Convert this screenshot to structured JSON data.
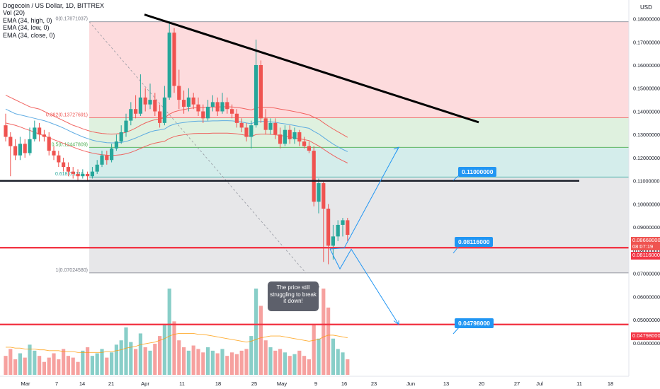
{
  "header": {
    "symbol_title": "Dogecoin / US Dollar, 1D, BITTREX",
    "indicators": [
      "Vol (20)",
      "EMA (34, high, 0)",
      "EMA (34, low, 0)",
      "EMA (34, close, 0)"
    ]
  },
  "currency_label": "USD",
  "callout_text": "The price still struggling to break it down!",
  "badges": [
    {
      "text": "0.11000000",
      "price": 0.11
    },
    {
      "text": "0.08116000",
      "price": 0.08116
    },
    {
      "text": "0.04798000",
      "price": 0.04798
    }
  ],
  "price_tags": {
    "current": {
      "price_text": "0.08668000",
      "timer_text": "08:07:19",
      "color": "#ef5350"
    },
    "support": {
      "text": "0.08116000",
      "color": "#f23645"
    },
    "target": {
      "text": "0.04798000",
      "color": "#f23645"
    }
  },
  "colors": {
    "bull": "#26a69a",
    "bear": "#ef5350",
    "red_line": "#f23645",
    "blue": "#2196f3",
    "ema": "#ef5350",
    "ema_close": "#4fa3e0",
    "fib_red": "rgba(242,54,69,0.18)",
    "fib_green": "rgba(76,175,80,0.18)",
    "fib_teal": "rgba(38,166,154,0.20)",
    "fib_gray": "rgba(120,123,134,0.18)"
  },
  "chart_data": {
    "type": "candlestick",
    "y_axis_ticks": [
      "0.18000000",
      "0.17000000",
      "0.16000000",
      "0.15000000",
      "0.14000000",
      "0.13000000",
      "0.12000000",
      "0.11000000",
      "0.10000000",
      "0.09000000",
      "0.08000000",
      "0.07000000",
      "0.06000000",
      "0.05000000",
      "0.04000000"
    ],
    "y_axis_range": [
      0.0354,
      0.1826
    ],
    "x_axis_ticks": [
      "Mar",
      "7",
      "14",
      "21",
      "Apr",
      "11",
      "18",
      "25",
      "May",
      "9",
      "16",
      "23",
      "Jun",
      "13",
      "20",
      "27",
      "Jul",
      "11",
      "18"
    ],
    "fib_levels": [
      {
        "ratio": "0",
        "price": 0.17871037,
        "label": "0(0.17871037)"
      },
      {
        "ratio": "0.382",
        "price": 0.13727691,
        "label": "0.382(0.13727691)"
      },
      {
        "ratio": "0.5",
        "price": 0.12447809,
        "label": "0.5(0.12447809)"
      },
      {
        "ratio": "0.618",
        "price": 0.11167927,
        "label": "0.618(0.1116..."
      },
      {
        "ratio": "1",
        "price": 0.0702458,
        "label": "1(0.07024580)"
      }
    ],
    "horizontal_levels": [
      0.11,
      0.08116,
      0.04798
    ],
    "candles": [
      [
        0.134,
        0.129,
        0.139,
        0.127
      ],
      [
        0.129,
        0.125,
        0.131,
        0.112
      ],
      [
        0.125,
        0.121,
        0.128,
        0.119
      ],
      [
        0.121,
        0.126,
        0.129,
        0.119
      ],
      [
        0.126,
        0.122,
        0.128,
        0.12
      ],
      [
        0.122,
        0.128,
        0.133,
        0.121
      ],
      [
        0.128,
        0.133,
        0.136,
        0.127
      ],
      [
        0.133,
        0.13,
        0.135,
        0.127
      ],
      [
        0.13,
        0.129,
        0.132,
        0.127
      ],
      [
        0.129,
        0.123,
        0.131,
        0.121
      ],
      [
        0.123,
        0.121,
        0.125,
        0.119
      ],
      [
        0.121,
        0.118,
        0.123,
        0.116
      ],
      [
        0.118,
        0.116,
        0.12,
        0.114
      ],
      [
        0.116,
        0.114,
        0.118,
        0.112
      ],
      [
        0.114,
        0.113,
        0.116,
        0.111
      ],
      [
        0.113,
        0.112,
        0.115,
        0.11
      ],
      [
        0.112,
        0.113,
        0.115,
        0.111
      ],
      [
        0.113,
        0.112,
        0.114,
        0.11
      ],
      [
        0.112,
        0.114,
        0.116,
        0.111
      ],
      [
        0.114,
        0.117,
        0.119,
        0.113
      ],
      [
        0.117,
        0.121,
        0.123,
        0.116
      ],
      [
        0.121,
        0.119,
        0.123,
        0.117
      ],
      [
        0.119,
        0.124,
        0.126,
        0.118
      ],
      [
        0.124,
        0.127,
        0.13,
        0.123
      ],
      [
        0.127,
        0.131,
        0.134,
        0.126
      ],
      [
        0.131,
        0.136,
        0.139,
        0.129
      ],
      [
        0.136,
        0.141,
        0.144,
        0.134
      ],
      [
        0.141,
        0.139,
        0.147,
        0.137
      ],
      [
        0.139,
        0.146,
        0.156,
        0.138
      ],
      [
        0.146,
        0.143,
        0.15,
        0.14
      ],
      [
        0.143,
        0.145,
        0.152,
        0.141
      ],
      [
        0.145,
        0.14,
        0.148,
        0.138
      ],
      [
        0.14,
        0.135,
        0.143,
        0.133
      ],
      [
        0.135,
        0.146,
        0.151,
        0.134
      ],
      [
        0.146,
        0.174,
        0.179,
        0.145
      ],
      [
        0.174,
        0.151,
        0.176,
        0.148
      ],
      [
        0.151,
        0.145,
        0.158,
        0.141
      ],
      [
        0.145,
        0.142,
        0.149,
        0.139
      ],
      [
        0.142,
        0.146,
        0.15,
        0.14
      ],
      [
        0.146,
        0.143,
        0.148,
        0.141
      ],
      [
        0.143,
        0.14,
        0.146,
        0.138
      ],
      [
        0.14,
        0.137,
        0.143,
        0.135
      ],
      [
        0.137,
        0.142,
        0.145,
        0.136
      ],
      [
        0.142,
        0.144,
        0.147,
        0.14
      ],
      [
        0.144,
        0.14,
        0.146,
        0.138
      ],
      [
        0.14,
        0.144,
        0.148,
        0.139
      ],
      [
        0.144,
        0.141,
        0.146,
        0.139
      ],
      [
        0.141,
        0.139,
        0.143,
        0.137
      ],
      [
        0.139,
        0.135,
        0.141,
        0.133
      ],
      [
        0.135,
        0.133,
        0.137,
        0.131
      ],
      [
        0.133,
        0.129,
        0.135,
        0.127
      ],
      [
        0.129,
        0.134,
        0.136,
        0.124
      ],
      [
        0.134,
        0.16,
        0.171,
        0.133
      ],
      [
        0.16,
        0.137,
        0.162,
        0.135
      ],
      [
        0.137,
        0.132,
        0.141,
        0.13
      ],
      [
        0.132,
        0.135,
        0.137,
        0.13
      ],
      [
        0.135,
        0.13,
        0.137,
        0.128
      ],
      [
        0.13,
        0.126,
        0.133,
        0.124
      ],
      [
        0.126,
        0.132,
        0.134,
        0.125
      ],
      [
        0.132,
        0.128,
        0.134,
        0.126
      ],
      [
        0.128,
        0.131,
        0.133,
        0.126
      ],
      [
        0.131,
        0.127,
        0.132,
        0.125
      ],
      [
        0.127,
        0.125,
        0.129,
        0.124
      ],
      [
        0.125,
        0.123,
        0.127,
        0.122
      ],
      [
        0.123,
        0.101,
        0.125,
        0.099
      ],
      [
        0.101,
        0.109,
        0.111,
        0.096
      ],
      [
        0.109,
        0.098,
        0.11,
        0.075
      ],
      [
        0.098,
        0.082,
        0.1,
        0.074
      ],
      [
        0.082,
        0.086,
        0.091,
        0.076
      ],
      [
        0.086,
        0.091,
        0.093,
        0.084
      ],
      [
        0.091,
        0.093,
        0.094,
        0.086
      ],
      [
        0.093,
        0.0867,
        0.094,
        0.084
      ]
    ],
    "ema_high": [
      0.147,
      0.146,
      0.145,
      0.144,
      0.143,
      0.142,
      0.1415,
      0.141,
      0.14,
      0.139,
      0.138,
      0.137,
      0.136,
      0.135,
      0.134,
      0.1333,
      0.1325,
      0.1318,
      0.1312,
      0.1308,
      0.1305,
      0.1303,
      0.1302,
      0.1303,
      0.1305,
      0.131,
      0.1318,
      0.1328,
      0.134,
      0.135,
      0.1358,
      0.1364,
      0.1368,
      0.1372,
      0.1388,
      0.1398,
      0.1404,
      0.1408,
      0.1412,
      0.1415,
      0.1416,
      0.1417,
      0.1418,
      0.1419,
      0.1419,
      0.142,
      0.142,
      0.1419,
      0.1417,
      0.1414,
      0.141,
      0.1406,
      0.1414,
      0.1418,
      0.1418,
      0.1417,
      0.1414,
      0.141,
      0.1407,
      0.1403,
      0.1399,
      0.1395,
      0.139,
      0.1385,
      0.1375,
      0.1366,
      0.1351,
      0.1337,
      0.1324,
      0.1312,
      0.13,
      0.1288
    ],
    "ema_close": [
      0.141,
      0.14,
      0.139,
      0.1385,
      0.138,
      0.1375,
      0.137,
      0.1365,
      0.136,
      0.1353,
      0.1345,
      0.1337,
      0.1328,
      0.1318,
      0.1308,
      0.1299,
      0.129,
      0.1283,
      0.1276,
      0.1271,
      0.1268,
      0.1265,
      0.1264,
      0.1264,
      0.1266,
      0.127,
      0.1277,
      0.1285,
      0.1294,
      0.1303,
      0.1311,
      0.1317,
      0.132,
      0.1324,
      0.1337,
      0.1345,
      0.1349,
      0.1352,
      0.1355,
      0.1357,
      0.1358,
      0.1358,
      0.1358,
      0.1359,
      0.1359,
      0.136,
      0.136,
      0.1359,
      0.1357,
      0.1354,
      0.135,
      0.1347,
      0.1355,
      0.1357,
      0.1357,
      0.1355,
      0.1353,
      0.1349,
      0.1346,
      0.1343,
      0.1339,
      0.1335,
      0.1331,
      0.1327,
      0.1314,
      0.1303,
      0.1288,
      0.1273,
      0.1259,
      0.1247,
      0.1236,
      0.1226
    ],
    "ema_low": [
      0.135,
      0.1345,
      0.134,
      0.1333,
      0.1325,
      0.1318,
      0.131,
      0.1302,
      0.1294,
      0.1286,
      0.1278,
      0.127,
      0.1262,
      0.1254,
      0.1246,
      0.1238,
      0.1231,
      0.1225,
      0.122,
      0.1216,
      0.1213,
      0.1211,
      0.121,
      0.1211,
      0.1213,
      0.1217,
      0.1223,
      0.1231,
      0.124,
      0.1249,
      0.1257,
      0.1263,
      0.1267,
      0.1271,
      0.1283,
      0.1291,
      0.1296,
      0.1299,
      0.1302,
      0.1304,
      0.1305,
      0.1305,
      0.1305,
      0.1306,
      0.1306,
      0.1306,
      0.1306,
      0.1305,
      0.1303,
      0.13,
      0.1296,
      0.1292,
      0.13,
      0.1302,
      0.1302,
      0.1301,
      0.1299,
      0.1296,
      0.1293,
      0.129,
      0.1286,
      0.1282,
      0.1278,
      0.1274,
      0.1262,
      0.1251,
      0.1237,
      0.1223,
      0.121,
      0.1198,
      0.1187,
      0.1177
    ],
    "volume": [
      0.22,
      0.3,
      0.18,
      0.25,
      0.2,
      0.35,
      0.28,
      0.22,
      0.15,
      0.2,
      0.25,
      0.18,
      0.3,
      0.22,
      0.2,
      0.15,
      0.28,
      0.32,
      0.22,
      0.25,
      0.3,
      0.2,
      0.26,
      0.35,
      0.4,
      0.55,
      0.38,
      0.3,
      0.48,
      0.32,
      0.28,
      0.36,
      0.45,
      0.58,
      1.0,
      0.62,
      0.4,
      0.32,
      0.28,
      0.34,
      0.3,
      0.26,
      0.32,
      0.28,
      0.25,
      0.3,
      0.22,
      0.26,
      0.24,
      0.28,
      0.3,
      0.45,
      1.0,
      0.8,
      0.4,
      0.32,
      0.28,
      0.3,
      0.26,
      0.22,
      0.24,
      0.28,
      0.22,
      0.18,
      0.58,
      0.42,
      1.0,
      0.78,
      0.42,
      0.3,
      0.26,
      0.18
    ],
    "volume_ma": [
      0.32,
      0.32,
      0.31,
      0.31,
      0.3,
      0.3,
      0.3,
      0.29,
      0.29,
      0.28,
      0.28,
      0.28,
      0.27,
      0.27,
      0.27,
      0.26,
      0.26,
      0.26,
      0.26,
      0.26,
      0.26,
      0.27,
      0.27,
      0.28,
      0.29,
      0.31,
      0.32,
      0.33,
      0.35,
      0.36,
      0.37,
      0.38,
      0.4,
      0.42,
      0.45,
      0.47,
      0.48,
      0.48,
      0.48,
      0.48,
      0.47,
      0.47,
      0.46,
      0.45,
      0.44,
      0.43,
      0.42,
      0.41,
      0.4,
      0.39,
      0.38,
      0.39,
      0.41,
      0.43,
      0.44,
      0.45,
      0.45,
      0.45,
      0.44,
      0.43,
      0.42,
      0.41,
      0.4,
      0.39,
      0.4,
      0.41,
      0.44,
      0.46,
      0.46,
      0.45,
      0.44,
      0.43
    ],
    "projection_up": [
      [
        0.081,
        0.1245
      ]
    ],
    "projection_down": [
      [
        0.079,
        0.072
      ],
      [
        0.0805,
        0.048
      ]
    ],
    "trendline": {
      "from": 0.1818,
      "to": 0.1353
    }
  }
}
